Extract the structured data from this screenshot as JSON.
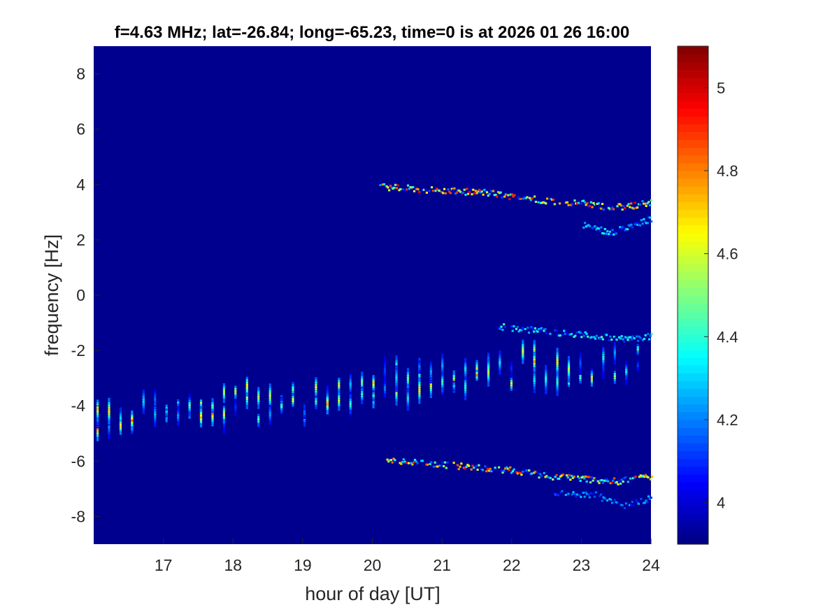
{
  "chart_data": {
    "type": "heatmap",
    "title": "f=4.63 MHz;  lat=-26.84; long=-65.23, time=0 is at 2026 01 26 16:00",
    "xlabel": "hour of day [UT]",
    "ylabel": "frequency [Hz]",
    "xlim": [
      16,
      24
    ],
    "ylim": [
      -9,
      9
    ],
    "x_ticks": [
      17,
      18,
      19,
      20,
      21,
      22,
      23,
      24
    ],
    "x_tick_labels": [
      "17",
      "18",
      "19",
      "20",
      "21",
      "22",
      "23",
      "24"
    ],
    "y_ticks": [
      8,
      6,
      4,
      2,
      0,
      -2,
      -4,
      -6,
      -8
    ],
    "y_tick_labels": [
      "8",
      "6",
      "4",
      "2",
      "0",
      "-2",
      "-4",
      "-6",
      "-8"
    ],
    "colorbar": {
      "colormap": "jet",
      "clim": [
        3.9,
        5.1
      ],
      "ticks": [
        5,
        4.8,
        4.6,
        4.4,
        4.2,
        4
      ],
      "tick_labels": [
        "5",
        "4.8",
        "4.6",
        "4.4",
        "4.2",
        "4"
      ]
    },
    "background_color": "#00008f",
    "features": [
      {
        "name": "central striated band",
        "points": [
          [
            16.0,
            -4.6
          ],
          [
            17.0,
            -4.1
          ],
          [
            18.0,
            -3.9
          ],
          [
            19.0,
            -3.7
          ],
          [
            20.0,
            -3.3
          ],
          [
            21.0,
            -2.9
          ],
          [
            22.0,
            -2.6
          ],
          [
            23.0,
            -2.5
          ],
          [
            23.9,
            -2.4
          ]
        ],
        "half_width": 0.9,
        "stripe_spacing_hours": 0.165,
        "peak_level": 4.85
      },
      {
        "name": "upper trace",
        "points": [
          [
            20.1,
            3.95
          ],
          [
            20.5,
            3.9
          ],
          [
            21.0,
            3.8
          ],
          [
            21.6,
            3.75
          ],
          [
            22.0,
            3.6
          ],
          [
            22.5,
            3.45
          ],
          [
            23.0,
            3.35
          ],
          [
            23.4,
            3.2
          ],
          [
            23.7,
            3.25
          ],
          [
            24.0,
            3.4
          ]
        ],
        "peak_level": 5.0
      },
      {
        "name": "upper trace secondary",
        "points": [
          [
            23.0,
            2.6
          ],
          [
            23.4,
            2.3
          ],
          [
            23.7,
            2.5
          ],
          [
            24.0,
            2.8
          ]
        ],
        "peak_level": 4.4
      },
      {
        "name": "middle trace",
        "points": [
          [
            21.8,
            -1.1
          ],
          [
            22.4,
            -1.25
          ],
          [
            23.0,
            -1.4
          ],
          [
            23.4,
            -1.5
          ],
          [
            23.7,
            -1.55
          ],
          [
            24.0,
            -1.45
          ]
        ],
        "peak_level": 4.45
      },
      {
        "name": "lower trace",
        "points": [
          [
            20.2,
            -5.95
          ],
          [
            20.8,
            -6.05
          ],
          [
            21.5,
            -6.2
          ],
          [
            22.0,
            -6.3
          ],
          [
            22.5,
            -6.5
          ],
          [
            23.0,
            -6.6
          ],
          [
            23.5,
            -6.7
          ],
          [
            24.0,
            -6.5
          ]
        ],
        "peak_level": 4.95
      },
      {
        "name": "lower trace secondary",
        "points": [
          [
            22.6,
            -7.1
          ],
          [
            23.2,
            -7.2
          ],
          [
            23.6,
            -7.6
          ],
          [
            24.0,
            -7.3
          ]
        ],
        "peak_level": 4.3
      }
    ]
  }
}
